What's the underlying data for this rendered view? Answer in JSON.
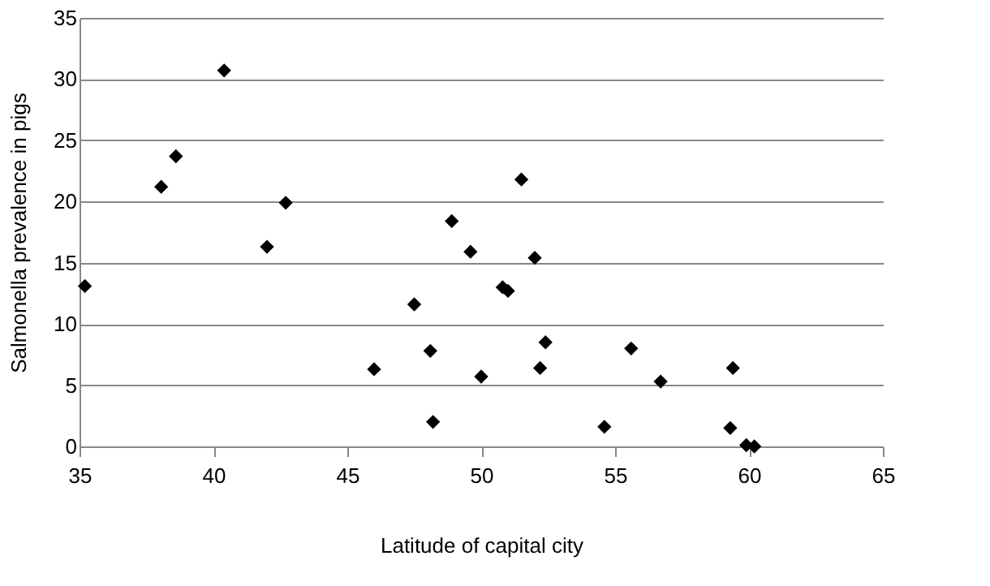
{
  "chart_data": {
    "type": "scatter",
    "xlabel": "Latitude of capital city",
    "ylabel": "Salmonella prevalence in pigs",
    "x": [
      35.2,
      38.05,
      38.6,
      40.4,
      42.0,
      42.7,
      46.0,
      47.5,
      48.1,
      48.2,
      48.9,
      49.6,
      50.0,
      50.8,
      51.0,
      51.5,
      52.0,
      52.2,
      52.4,
      54.6,
      55.6,
      56.7,
      59.4,
      59.3,
      59.9,
      60.2
    ],
    "values": [
      13.1,
      21.2,
      23.7,
      30.7,
      16.3,
      19.9,
      6.3,
      11.6,
      7.8,
      2.0,
      18.4,
      15.9,
      5.7,
      13.0,
      12.7,
      21.8,
      15.4,
      6.4,
      8.5,
      1.6,
      8.0,
      5.3,
      6.4,
      1.5,
      0.1,
      0.0
    ],
    "color": "#000000",
    "marker": "diamond",
    "grid": "y",
    "xlim": [
      35,
      65
    ],
    "xticks": [
      35,
      40,
      45,
      50,
      55,
      60,
      65
    ],
    "ylim": [
      0,
      35
    ],
    "yticks": [
      0,
      5,
      10,
      15,
      20,
      25,
      30,
      35
    ]
  }
}
